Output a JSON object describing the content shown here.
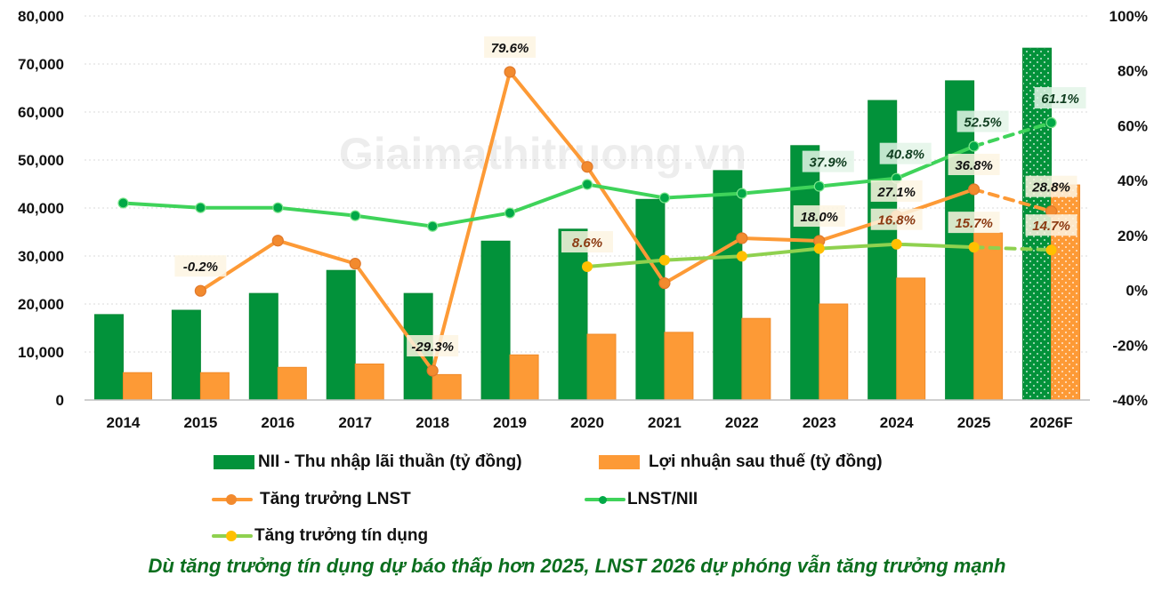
{
  "chart_data": {
    "type": "bar+line",
    "watermark": "Giaimathitruong.vn",
    "categories": [
      "2014",
      "2015",
      "2016",
      "2017",
      "2018",
      "2019",
      "2020",
      "2021",
      "2022",
      "2023",
      "2024",
      "2025",
      "2026F"
    ],
    "forecast_category": "2026F",
    "y_left": {
      "min": 0,
      "max": 80000,
      "ticks": [
        "0",
        "10,000",
        "20,000",
        "30,000",
        "40,000",
        "50,000",
        "60,000",
        "70,000",
        "80,000"
      ]
    },
    "y_right": {
      "min": -40,
      "max": 100,
      "ticks": [
        "-40%",
        "-20%",
        "0%",
        "20%",
        "40%",
        "60%",
        "80%",
        "100%"
      ]
    },
    "grid": true,
    "legend_position": "bottom",
    "bar_series": [
      {
        "name": "NII - Thu nhập lãi thuần (tỷ đồng)",
        "color": "#02923a",
        "values": [
          17800,
          18700,
          22200,
          27000,
          22200,
          33100,
          35600,
          41800,
          47800,
          53000,
          62400,
          66500,
          73300
        ]
      },
      {
        "name": "Lợi nhuận sau thuế (tỷ đồng)",
        "color": "#fd9a36",
        "values": [
          5700,
          5700,
          6800,
          7500,
          5300,
          9400,
          13700,
          14100,
          17000,
          20000,
          25400,
          34800,
          44800
        ]
      }
    ],
    "line_series": [
      {
        "name": "Tăng trưởng LNST",
        "color": "#fd9a36",
        "marker": "#f28a2e",
        "label_color": "#111111",
        "label_bg": "#fdf5e2",
        "values": [
          null,
          -0.2,
          18.1,
          9.7,
          -29.3,
          79.6,
          45.0,
          2.6,
          19.0,
          18.0,
          27.1,
          36.8,
          28.8
        ],
        "labels": [
          null,
          "-0.2%",
          null,
          null,
          "-29.3%",
          "79.6%",
          null,
          null,
          null,
          "18.0%",
          "27.1%",
          "36.8%",
          "28.8%"
        ]
      },
      {
        "name": "LNST/NII",
        "color": "#3fd35a",
        "marker": "#02a847",
        "label_color": "#0f3d1f",
        "label_bg": "#e3f5e8",
        "values": [
          31.8,
          30.1,
          30.1,
          27.2,
          23.3,
          28.2,
          38.6,
          33.7,
          35.3,
          37.9,
          40.8,
          52.5,
          61.1
        ],
        "labels": [
          null,
          null,
          null,
          null,
          null,
          null,
          null,
          null,
          null,
          "37.9%",
          "40.8%",
          "52.5%",
          "61.1%"
        ]
      },
      {
        "name": "Tăng trưởng tín dụng",
        "color": "#8fd14f",
        "marker": "#ffc000",
        "label_color": "#8b3a12",
        "label_bg": "#fdf5e2",
        "values": [
          null,
          null,
          null,
          null,
          null,
          null,
          8.6,
          11.0,
          12.4,
          15.2,
          16.8,
          15.7,
          14.7
        ],
        "labels": [
          null,
          null,
          null,
          null,
          null,
          null,
          "8.6%",
          null,
          null,
          null,
          "16.8%",
          "15.7%",
          "14.7%"
        ]
      }
    ]
  },
  "legend": {
    "nii": "NII - Thu nhập lãi thuần (tỷ đồng)",
    "lnst": "Lợi nhuận sau thuế (tỷ đồng)",
    "growth": "Tăng trưởng LNST",
    "ratio": "LNST/NII",
    "credit": "Tăng trưởng tín dụng"
  },
  "caption": "Dù tăng trưởng tín dụng dự báo thấp hơn 2025, LNST 2026 dự phóng vẫn tăng trưởng mạnh"
}
